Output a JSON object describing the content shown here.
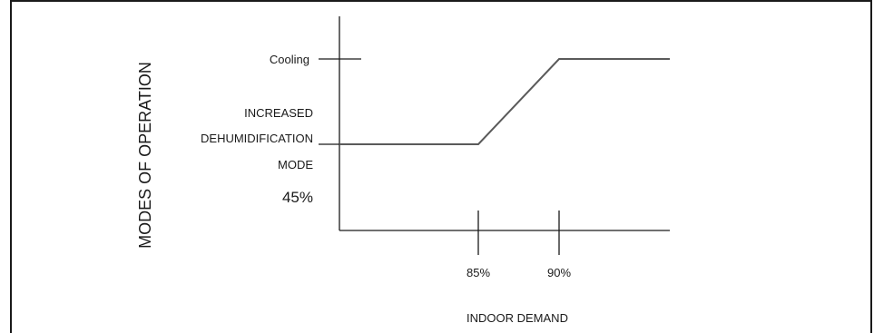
{
  "diagram": {
    "y_axis_title": "MODES OF OPERATION",
    "x_axis_title": "INDOOR DEMAND",
    "y_labels": {
      "cooling": "Cooling",
      "dehum_line1": "INCREASED",
      "dehum_line2": "DEHUMIDIFICATION",
      "dehum_line3": "MODE",
      "percent": "45%"
    },
    "x_ticks": [
      "85%",
      "90%"
    ]
  }
}
